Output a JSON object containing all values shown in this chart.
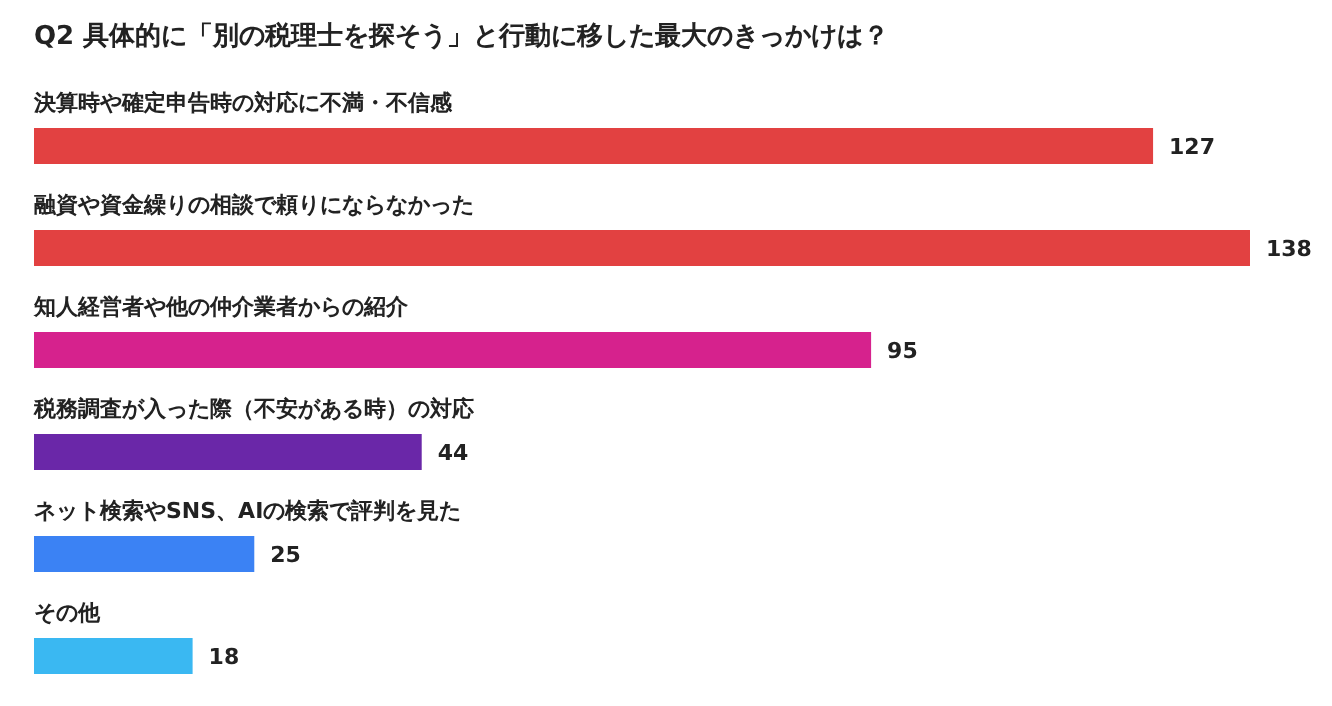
{
  "chart_data": {
    "type": "bar",
    "orientation": "horizontal",
    "title": "Q2 具体的に「別の税理士を探そう」と行動に移した最大のきっかけは？",
    "categories": [
      "決算時や確定申告時の対応に不満・不信感",
      "融資や資金繰りの相談で頼りにならなかった",
      "知人経営者や他の仲介業者からの紹介",
      "税務調査が入った際（不安がある時）の対応",
      "ネット検索やSNS、AIの検索で評判を見た",
      "その他"
    ],
    "values": [
      127,
      138,
      95,
      44,
      25,
      18
    ],
    "colors": [
      "#e24141",
      "#e24141",
      "#d6228d",
      "#6a27a8",
      "#3b82f4",
      "#3ab8f2"
    ],
    "data_labels": true
  }
}
